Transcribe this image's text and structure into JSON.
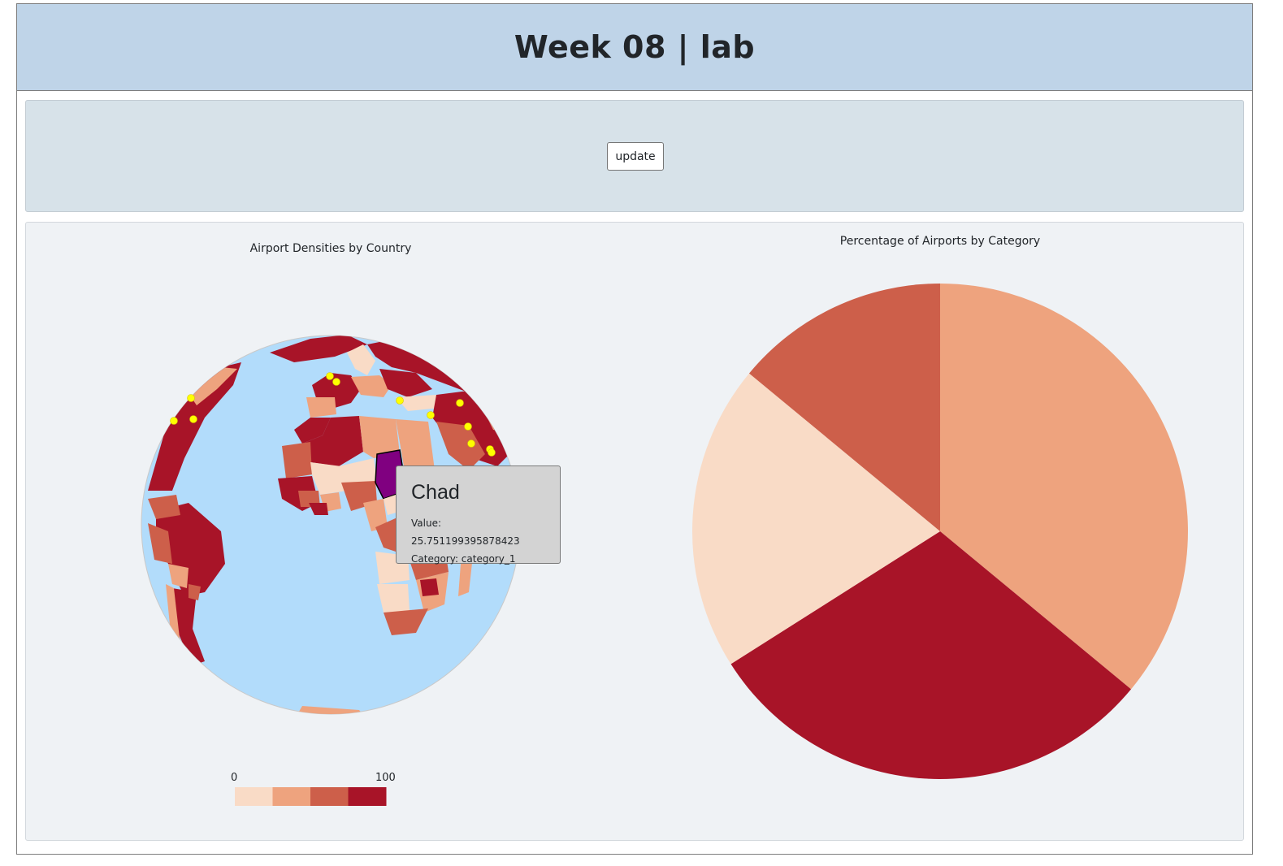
{
  "header": {
    "title": "Week 08 | lab"
  },
  "controls": {
    "update_label": "update"
  },
  "map": {
    "title": "Airport Densities by Country",
    "legend": {
      "min_label": "0",
      "max_label": "100",
      "colors": [
        "#f9dbc6",
        "#eea37e",
        "#cd5f4a",
        "#a81428"
      ]
    },
    "ocean_color": "#b2dcfb",
    "highlight_color": "#800080",
    "airport_color": "#ffff00"
  },
  "tooltip": {
    "name": "Chad",
    "value_label": "Value: 25.751199395878423",
    "category_label": "Category: category_1"
  },
  "chart_data": {
    "type": "pie",
    "title": "Percentage of Airports by Category",
    "slices": [
      {
        "value": 36,
        "color": "#eea37e"
      },
      {
        "value": 30,
        "color": "#a81428"
      },
      {
        "value": 20,
        "color": "#f9dbc6"
      },
      {
        "value": 14,
        "color": "#cd5f4a"
      }
    ]
  }
}
